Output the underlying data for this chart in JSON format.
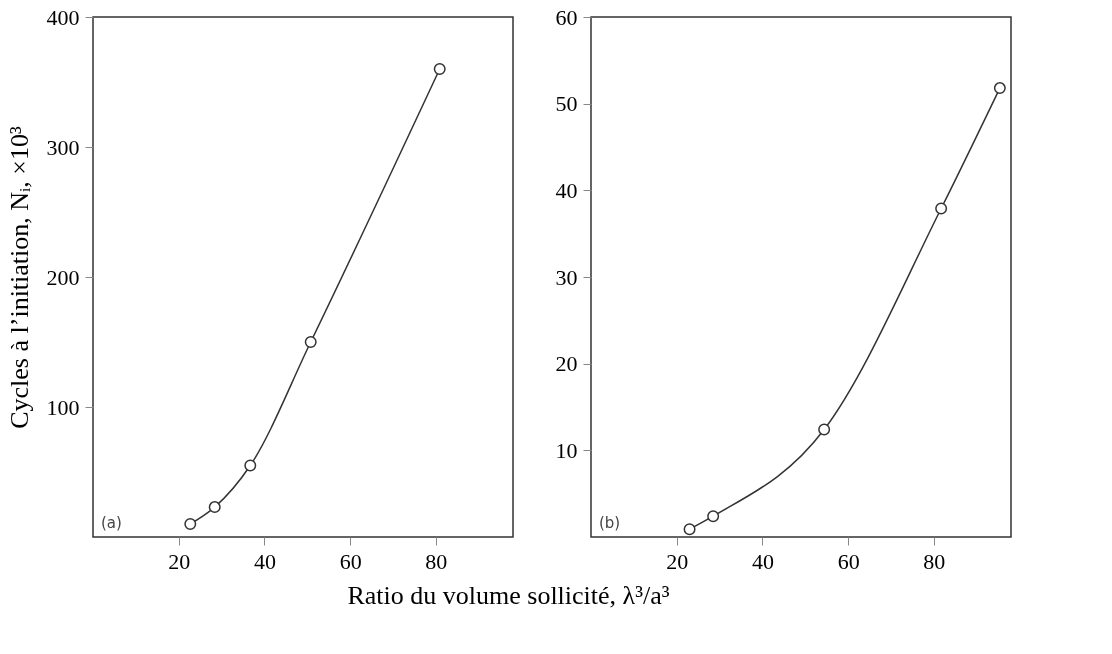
{
  "chart_data": [
    {
      "type": "line",
      "ylabel": "Cycles à l’initiation, Nᵢ, ×10³",
      "xlabel": "Ratio du volume sollicité, λ³/a³",
      "annotations": [
        "(a)"
      ],
      "marker": "circle",
      "line_style": "solid",
      "grid": false,
      "series": [
        {
          "color": "#333333",
          "x": [
            22.7,
            28.4,
            36.7,
            50.8,
            80.9
          ],
          "values": [
            10,
            23,
            55,
            150,
            360
          ]
        }
      ],
      "xlim": [
        0,
        98
      ],
      "xticks": [
        20,
        40,
        60,
        80
      ],
      "ylim": [
        0,
        400
      ],
      "yticks": [
        100,
        200,
        300,
        400
      ]
    },
    {
      "type": "line",
      "annotations": [
        "(b)"
      ],
      "marker": "circle",
      "line_style": "solid",
      "grid": false,
      "series": [
        {
          "color": "#333333",
          "x": [
            23.0,
            28.5,
            54.4,
            81.7,
            95.4
          ],
          "values": [
            0.9,
            2.4,
            12.4,
            37.9,
            51.8
          ]
        }
      ],
      "xlim": [
        0,
        98
      ],
      "xticks": [
        20,
        40,
        60,
        80
      ],
      "ylim": [
        0,
        60
      ],
      "yticks": [
        10,
        20,
        30,
        40,
        50,
        60
      ]
    }
  ]
}
